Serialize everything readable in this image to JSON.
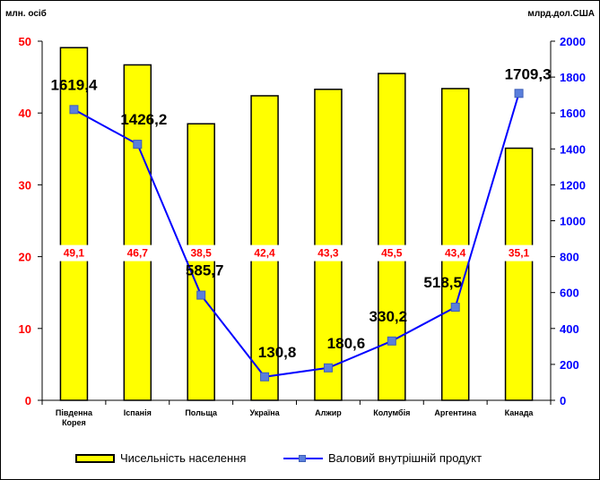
{
  "chart_data": {
    "type": "bar",
    "categories": [
      "Південна Корея",
      "Іспанія",
      "Польща",
      "Україна",
      "Алжир",
      "Колумбія",
      "Аргентина",
      "Канада"
    ],
    "category_lines": [
      [
        "Південна",
        "Корея"
      ],
      [
        "Іспанія"
      ],
      [
        "Польща"
      ],
      [
        "Україна"
      ],
      [
        "Алжир"
      ],
      [
        "Колумбія"
      ],
      [
        "Аргентина"
      ],
      [
        "Канада"
      ]
    ],
    "series": [
      {
        "name": "Чисельність населення",
        "type": "bar",
        "axis": "left",
        "values": [
          49.1,
          46.7,
          38.5,
          42.4,
          43.3,
          45.5,
          43.4,
          35.1
        ],
        "labels": [
          "49,1",
          "46,7",
          "38,5",
          "42,4",
          "43,3",
          "45,5",
          "43,4",
          "35,1"
        ],
        "color": "#ffff00"
      },
      {
        "name": "Валовий внутрішній продукт",
        "type": "line",
        "axis": "right",
        "values": [
          1619.4,
          1426.2,
          585.7,
          130.8,
          180.6,
          330.2,
          518.5,
          1709.3
        ],
        "labels": [
          "1619,4",
          "1426,2",
          "585,7",
          "130,8",
          "180,6",
          "330,2",
          "518,5",
          "1709,3"
        ],
        "color": "#0000ff",
        "marker_color": "#5a7fdc"
      }
    ],
    "ylabel_left": "млн. осіб",
    "ylabel_right": "млрд.дол.США",
    "ylim_left": [
      0,
      50
    ],
    "yticks_left": [
      0,
      10,
      20,
      30,
      40,
      50
    ],
    "ylim_right": [
      0,
      2000
    ],
    "yticks_right": [
      0,
      200,
      400,
      600,
      800,
      1000,
      1200,
      1400,
      1600,
      1800,
      2000
    ],
    "left_tick_color": "#ff0000",
    "right_tick_color": "#0000ff",
    "grid": false,
    "legend_position": "bottom"
  }
}
